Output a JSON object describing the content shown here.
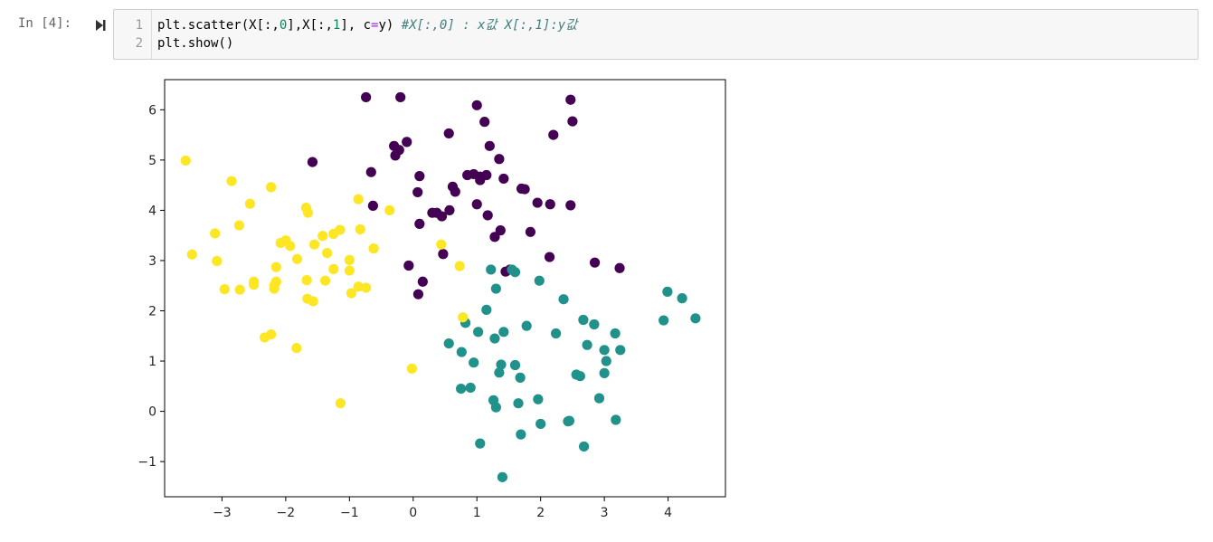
{
  "cell": {
    "prompt": "In [4]:",
    "line_numbers": [
      "1",
      "2"
    ],
    "code": {
      "line1_a": "plt.scatter(X[:,",
      "line1_n0": "0",
      "line1_b": "],X[:,",
      "line1_n1": "1",
      "line1_c": "], c",
      "line1_eq": "=",
      "line1_d": "y) ",
      "line1_comment": "#X[:,0] : x값 X[:,1]:y값",
      "line2": "plt.show()"
    }
  },
  "chart_data": {
    "type": "scatter",
    "xlim": [
      -3.9,
      4.9
    ],
    "ylim": [
      -1.7,
      6.6
    ],
    "xticks": [
      -3,
      -2,
      -1,
      0,
      1,
      2,
      3,
      4
    ],
    "yticks": [
      -1,
      0,
      1,
      2,
      3,
      4,
      5,
      6
    ],
    "xtick_labels": [
      "−3",
      "−2",
      "−1",
      "0",
      "1",
      "2",
      "3",
      "4"
    ],
    "ytick_labels": [
      "−1",
      "0",
      "1",
      "2",
      "3",
      "4",
      "5",
      "6"
    ],
    "grid": false,
    "colors": {
      "0": "#440154",
      "1": "#21918c",
      "2": "#fde725"
    },
    "series": [
      {
        "class": 0,
        "points": [
          [
            -0.74,
            6.25
          ],
          [
            -0.2,
            6.25
          ],
          [
            1.0,
            6.09
          ],
          [
            2.47,
            6.2
          ],
          [
            1.12,
            5.76
          ],
          [
            2.5,
            5.77
          ],
          [
            0.56,
            5.53
          ],
          [
            2.2,
            5.5
          ],
          [
            -0.1,
            5.36
          ],
          [
            -0.3,
            5.28
          ],
          [
            -0.22,
            5.2
          ],
          [
            1.2,
            5.28
          ],
          [
            -0.28,
            5.09
          ],
          [
            1.35,
            5.02
          ],
          [
            -1.58,
            4.96
          ],
          [
            -0.66,
            4.76
          ],
          [
            0.1,
            4.68
          ],
          [
            0.85,
            4.7
          ],
          [
            0.95,
            4.72
          ],
          [
            1.05,
            4.67
          ],
          [
            1.15,
            4.7
          ],
          [
            1.05,
            4.6
          ],
          [
            1.42,
            4.63
          ],
          [
            0.62,
            4.47
          ],
          [
            0.66,
            4.37
          ],
          [
            0.07,
            4.36
          ],
          [
            1.7,
            4.43
          ],
          [
            1.75,
            4.42
          ],
          [
            1.0,
            4.12
          ],
          [
            1.95,
            4.15
          ],
          [
            2.15,
            4.12
          ],
          [
            2.47,
            4.1
          ],
          [
            -0.63,
            4.09
          ],
          [
            0.3,
            3.95
          ],
          [
            0.37,
            3.95
          ],
          [
            0.57,
            4.0
          ],
          [
            0.45,
            3.88
          ],
          [
            1.17,
            3.9
          ],
          [
            0.1,
            3.73
          ],
          [
            1.37,
            3.6
          ],
          [
            1.28,
            3.47
          ],
          [
            1.84,
            3.57
          ],
          [
            0.47,
            3.13
          ],
          [
            2.14,
            3.07
          ],
          [
            2.85,
            2.96
          ],
          [
            3.24,
            2.85
          ],
          [
            -0.07,
            2.9
          ],
          [
            0.15,
            2.58
          ],
          [
            0.08,
            2.33
          ],
          [
            1.45,
            2.78
          ],
          [
            1.52,
            2.82
          ]
        ]
      },
      {
        "class": 1,
        "points": [
          [
            1.22,
            2.82
          ],
          [
            1.6,
            2.77
          ],
          [
            1.98,
            2.6
          ],
          [
            1.3,
            2.44
          ],
          [
            3.99,
            2.38
          ],
          [
            4.22,
            2.25
          ],
          [
            2.36,
            2.23
          ],
          [
            1.15,
            2.02
          ],
          [
            3.93,
            1.81
          ],
          [
            4.43,
            1.85
          ],
          [
            2.67,
            1.82
          ],
          [
            2.84,
            1.73
          ],
          [
            0.82,
            1.76
          ],
          [
            1.78,
            1.7
          ],
          [
            1.42,
            1.58
          ],
          [
            1.02,
            1.58
          ],
          [
            2.24,
            1.55
          ],
          [
            3.17,
            1.55
          ],
          [
            1.28,
            1.45
          ],
          [
            0.56,
            1.35
          ],
          [
            2.73,
            1.32
          ],
          [
            0.76,
            1.18
          ],
          [
            3.0,
            1.22
          ],
          [
            3.25,
            1.22
          ],
          [
            0.95,
            0.97
          ],
          [
            1.38,
            0.93
          ],
          [
            1.6,
            0.92
          ],
          [
            3.03,
            1.0
          ],
          [
            1.35,
            0.77
          ],
          [
            2.56,
            0.73
          ],
          [
            2.62,
            0.7
          ],
          [
            1.68,
            0.67
          ],
          [
            3.0,
            0.76
          ],
          [
            0.75,
            0.45
          ],
          [
            0.9,
            0.47
          ],
          [
            1.26,
            0.22
          ],
          [
            1.96,
            0.24
          ],
          [
            1.65,
            0.16
          ],
          [
            2.92,
            0.26
          ],
          [
            1.3,
            0.08
          ],
          [
            2.45,
            -0.19
          ],
          [
            2.43,
            -0.2
          ],
          [
            3.18,
            -0.17
          ],
          [
            2.0,
            -0.25
          ],
          [
            1.69,
            -0.46
          ],
          [
            1.05,
            -0.64
          ],
          [
            2.68,
            -0.7
          ],
          [
            1.4,
            -1.31
          ],
          [
            1.55,
            2.82
          ]
        ]
      },
      {
        "class": 2,
        "points": [
          [
            -3.57,
            4.99
          ],
          [
            -2.85,
            4.58
          ],
          [
            -2.23,
            4.46
          ],
          [
            -2.56,
            4.13
          ],
          [
            -1.68,
            4.05
          ],
          [
            -0.86,
            4.22
          ],
          [
            -0.37,
            4.0
          ],
          [
            -1.65,
            3.95
          ],
          [
            -2.73,
            3.7
          ],
          [
            -0.83,
            3.62
          ],
          [
            -1.15,
            3.61
          ],
          [
            -1.42,
            3.49
          ],
          [
            -1.25,
            3.53
          ],
          [
            -3.11,
            3.54
          ],
          [
            -2.08,
            3.35
          ],
          [
            -2.0,
            3.4
          ],
          [
            -1.55,
            3.32
          ],
          [
            -1.93,
            3.29
          ],
          [
            -1.35,
            3.15
          ],
          [
            -0.62,
            3.24
          ],
          [
            0.44,
            3.32
          ],
          [
            -3.47,
            3.12
          ],
          [
            -1.82,
            3.03
          ],
          [
            -3.08,
            2.99
          ],
          [
            -1.0,
            3.01
          ],
          [
            0.73,
            2.89
          ],
          [
            -2.15,
            2.87
          ],
          [
            -1.25,
            2.83
          ],
          [
            -1.0,
            2.8
          ],
          [
            -1.67,
            2.61
          ],
          [
            -1.38,
            2.6
          ],
          [
            -2.15,
            2.58
          ],
          [
            -2.5,
            2.58
          ],
          [
            -2.5,
            2.52
          ],
          [
            -2.18,
            2.5
          ],
          [
            -2.18,
            2.44
          ],
          [
            -2.96,
            2.43
          ],
          [
            -2.72,
            2.42
          ],
          [
            -0.86,
            2.48
          ],
          [
            -0.74,
            2.46
          ],
          [
            -0.97,
            2.35
          ],
          [
            -1.66,
            2.24
          ],
          [
            -1.57,
            2.19
          ],
          [
            0.78,
            1.87
          ],
          [
            -2.23,
            1.53
          ],
          [
            -2.33,
            1.47
          ],
          [
            -1.83,
            1.26
          ],
          [
            -0.02,
            0.85
          ],
          [
            -1.14,
            0.16
          ]
        ]
      }
    ]
  }
}
